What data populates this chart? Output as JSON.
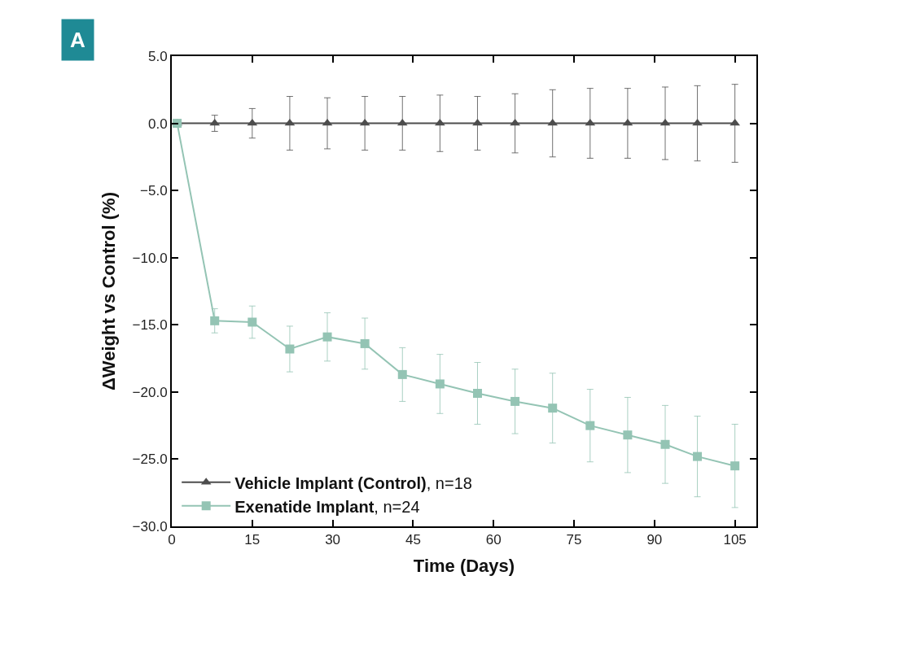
{
  "chart_data": {
    "type": "line",
    "xlabel": "Time (Days)",
    "ylabel": "ΔWeight vs Control (%)",
    "annotations": [
      "A"
    ],
    "x": [
      1,
      8,
      15,
      22,
      29,
      36,
      43,
      50,
      57,
      64,
      71,
      78,
      85,
      92,
      98,
      105
    ],
    "series": [
      {
        "name": "Vehicle Implant (Control), n=18",
        "color": "#4d4d4d",
        "marker": "triangle",
        "values": [
          0,
          0,
          0,
          0,
          0,
          0,
          0,
          0,
          0,
          0,
          0,
          0,
          0,
          0,
          0,
          0
        ],
        "errors": [
          null,
          0.6,
          1.1,
          2.0,
          1.9,
          2.0,
          2.0,
          2.1,
          2.0,
          2.2,
          2.5,
          2.6,
          2.6,
          2.7,
          2.8,
          2.9
        ]
      },
      {
        "name": "Exenatide Implant, n=24",
        "color": "#94c4b4",
        "marker": "square",
        "values": [
          0,
          -14.7,
          -14.8,
          -16.8,
          -15.9,
          -16.4,
          -18.7,
          -19.4,
          -20.1,
          -20.7,
          -21.2,
          -22.5,
          -23.2,
          -23.9,
          -24.8,
          -25.5
        ],
        "errors": [
          null,
          0.9,
          1.2,
          1.7,
          1.8,
          1.9,
          2.0,
          2.2,
          2.3,
          2.4,
          2.6,
          2.7,
          2.8,
          2.9,
          3.0,
          3.1
        ]
      }
    ],
    "xlim": [
      0,
      109
    ],
    "xticks": [
      0,
      15,
      30,
      45,
      60,
      75,
      90,
      105
    ],
    "ylim": [
      -30,
      5
    ],
    "yticks": [
      {
        "value": 5,
        "label": "5.0"
      },
      {
        "value": 0,
        "label": "0.0"
      },
      {
        "value": -5,
        "label": "−5.0"
      },
      {
        "value": -10,
        "label": "−10.0"
      },
      {
        "value": -15,
        "label": "−15.0"
      },
      {
        "value": -20,
        "label": "−20.0"
      },
      {
        "value": -25,
        "label": "−25.0"
      },
      {
        "value": -30,
        "label": "−30.0"
      }
    ],
    "legend": "bottom left",
    "line_style": "solid"
  }
}
